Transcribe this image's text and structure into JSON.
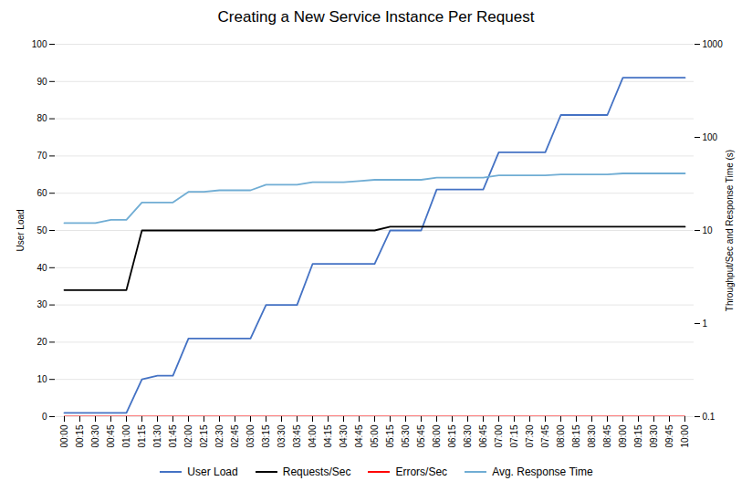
{
  "chart_data": {
    "type": "line",
    "title": "Creating a New Service Instance Per Request",
    "ylabel": "User Load",
    "y2label": "Throughput/Sec and Response Time (s)",
    "categories": [
      "00:00",
      "00:15",
      "00:30",
      "00:45",
      "01:00",
      "01:15",
      "01:30",
      "01:45",
      "02:00",
      "02:15",
      "02:30",
      "02:45",
      "03:00",
      "03:15",
      "03:30",
      "03:45",
      "04:00",
      "04:15",
      "04:30",
      "04:45",
      "05:00",
      "05:15",
      "05:30",
      "05:45",
      "06:00",
      "06:15",
      "06:30",
      "06:45",
      "07:00",
      "07:15",
      "07:30",
      "07:45",
      "08:00",
      "08:15",
      "08:30",
      "08:45",
      "09:00",
      "09:15",
      "09:30",
      "09:45",
      "10:00"
    ],
    "series": [
      {
        "name": "User Load",
        "color": "#4472C4",
        "values": [
          1,
          1,
          1,
          1,
          1,
          10,
          11,
          11,
          21,
          21,
          21,
          21,
          21,
          30,
          30,
          30,
          41,
          41,
          41,
          41,
          41,
          50,
          50,
          50,
          61,
          61,
          61,
          61,
          71,
          71,
          71,
          71,
          81,
          81,
          81,
          81,
          91,
          91,
          91,
          91,
          91
        ]
      },
      {
        "name": "Requests/Sec",
        "color": "#000000",
        "values": [
          34,
          34,
          34,
          34,
          34,
          50,
          50,
          50,
          50,
          50,
          50,
          50,
          50,
          50,
          50,
          50,
          50,
          50,
          50,
          50,
          50,
          51,
          51,
          51,
          51,
          51,
          51,
          51,
          51,
          51,
          51,
          51,
          51,
          51,
          51,
          51,
          51,
          51,
          51,
          51,
          51
        ]
      },
      {
        "name": "Errors/Sec",
        "color": "#FF0000",
        "values": [
          0,
          0,
          0,
          0,
          0,
          0,
          0,
          0,
          0,
          0,
          0,
          0,
          0,
          0,
          0,
          0,
          0,
          0,
          0,
          0,
          0,
          0,
          0,
          0,
          0,
          0,
          0,
          0,
          0,
          0,
          0,
          0,
          0,
          0,
          0,
          0,
          0,
          0,
          0,
          0,
          0
        ]
      },
      {
        "name": "Avg. Response Time",
        "color": "#70ADD4",
        "axis": "y2",
        "values": [
          12,
          12,
          12,
          13,
          13,
          20,
          20,
          20,
          26,
          26,
          27,
          27,
          27,
          31,
          31,
          31,
          33,
          33,
          33,
          34,
          35,
          35,
          35,
          35,
          37,
          37,
          37,
          37,
          39,
          39,
          39,
          39,
          40,
          40,
          40,
          40,
          41,
          41,
          41,
          41,
          41
        ]
      }
    ],
    "ylim": [
      0,
      100
    ],
    "yticks": [
      0,
      10,
      20,
      30,
      40,
      50,
      60,
      70,
      80,
      90,
      100
    ],
    "y2lim": [
      0.1,
      1000
    ],
    "y2ticks": [
      0.1,
      1,
      10,
      100,
      1000
    ],
    "log": "y2",
    "grid": true,
    "legend": "bottom"
  }
}
